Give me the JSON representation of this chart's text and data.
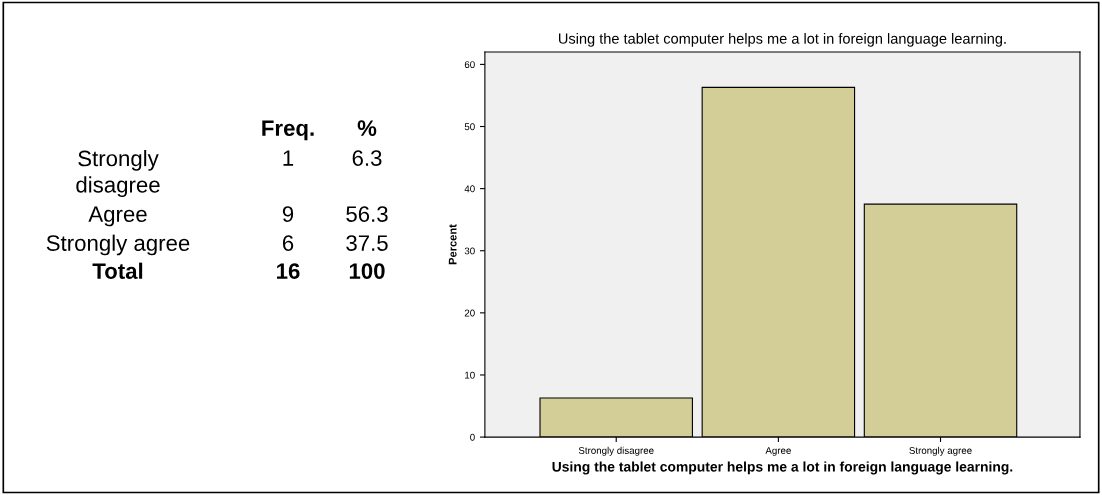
{
  "chart_data": {
    "type": "bar",
    "title": "Using the tablet computer helps me a lot in foreign language learning.",
    "xlabel": "Using the tablet computer helps me a lot in foreign language learning.",
    "ylabel": "Percent",
    "categories": [
      "Strongly disagree",
      "Agree",
      "Strongly agree"
    ],
    "values": [
      6.3,
      56.3,
      37.5
    ],
    "color": "#d3ce97",
    "ylim": [
      0,
      62
    ],
    "yticks": [
      0,
      10,
      20,
      30,
      40,
      50,
      60
    ],
    "grid": false,
    "legend": false,
    "annotations": [
      "Freq.",
      "%",
      "1",
      "9",
      "6",
      "Total",
      "16",
      "100",
      "6.3",
      "56.3",
      "37.5"
    ]
  }
}
